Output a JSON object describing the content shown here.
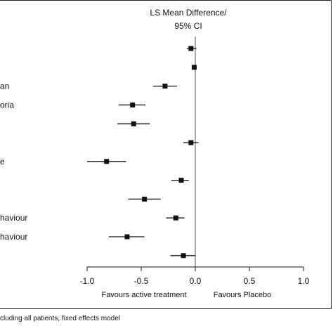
{
  "chart_data": {
    "type": "forest",
    "title_line1": "LS Mean Difference/",
    "title_line2": "95% CI",
    "row_labels": [
      "",
      "",
      "an",
      "oria",
      "",
      "",
      "e",
      "",
      "",
      "haviour",
      "haviour",
      ""
    ],
    "estimates": [
      -0.04,
      -0.01,
      -0.28,
      -0.58,
      -0.57,
      -0.04,
      -0.82,
      -0.13,
      -0.47,
      -0.18,
      -0.63,
      -0.11
    ],
    "ci_lower": [
      -0.08,
      -0.01,
      -0.39,
      -0.71,
      -0.72,
      -0.11,
      -1.0,
      -0.22,
      -0.62,
      -0.27,
      -0.8,
      -0.23
    ],
    "ci_upper": [
      0.01,
      -0.01,
      -0.17,
      -0.46,
      -0.42,
      0.03,
      -0.64,
      -0.06,
      -0.32,
      -0.1,
      -0.47,
      0.0
    ],
    "xlim": [
      -1.0,
      1.0
    ],
    "x_ticks": [
      -1.0,
      -0.5,
      0.0,
      0.5,
      1.0
    ],
    "x_tick_labels": [
      "-1.0",
      "-0.5",
      "0.0",
      "0.5",
      "1.0"
    ],
    "reference_line": 0.0,
    "favours_left": "Favours active treatment",
    "favours_right": "Favours Placebo"
  },
  "footnote": "cluding all patients, fixed effects model"
}
